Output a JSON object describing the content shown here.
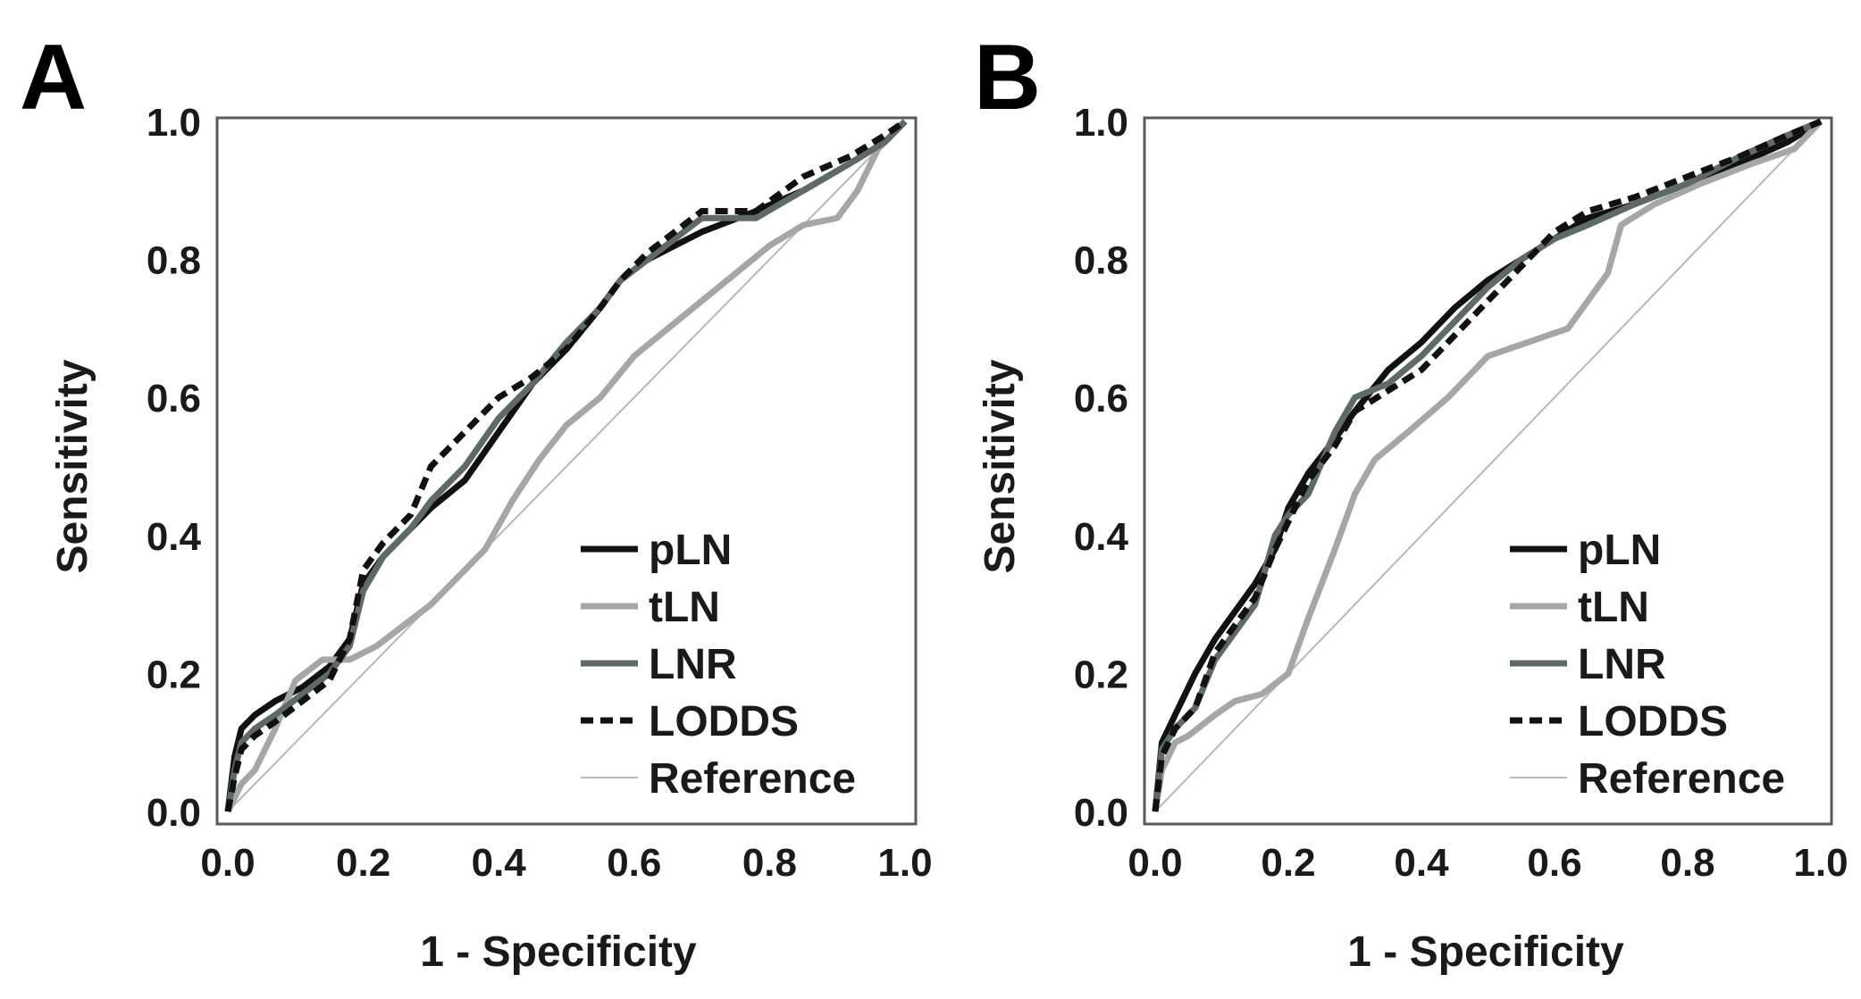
{
  "chart_data": [
    {
      "panel": "A",
      "type": "line",
      "title": "",
      "xlabel": "1 - Specificity",
      "ylabel": "Sensitivity",
      "xlim": [
        0,
        1
      ],
      "ylim": [
        0,
        1
      ],
      "xticks": [
        "0.0",
        "0.2",
        "0.4",
        "0.6",
        "0.8",
        "1.0"
      ],
      "yticks": [
        "0.0",
        "0.2",
        "0.4",
        "0.6",
        "0.8",
        "1.0"
      ],
      "legend_position": "bottom-right",
      "series": [
        {
          "name": "pLN",
          "color": "#111111",
          "style": "solid-thick",
          "x": [
            0,
            0.01,
            0.02,
            0.04,
            0.07,
            0.11,
            0.15,
            0.18,
            0.2,
            0.23,
            0.27,
            0.3,
            0.35,
            0.4,
            0.45,
            0.5,
            0.55,
            0.58,
            0.62,
            0.7,
            0.78,
            0.85,
            0.92,
            0.97,
            1.0
          ],
          "y": [
            0,
            0.08,
            0.12,
            0.14,
            0.16,
            0.18,
            0.21,
            0.25,
            0.33,
            0.37,
            0.41,
            0.44,
            0.48,
            0.55,
            0.62,
            0.67,
            0.73,
            0.77,
            0.8,
            0.84,
            0.87,
            0.9,
            0.94,
            0.97,
            1.0
          ]
        },
        {
          "name": "tLN",
          "color": "#a6a6a6",
          "style": "solid-thick",
          "x": [
            0,
            0.02,
            0.04,
            0.07,
            0.1,
            0.14,
            0.18,
            0.22,
            0.26,
            0.3,
            0.35,
            0.38,
            0.42,
            0.46,
            0.5,
            0.55,
            0.6,
            0.65,
            0.7,
            0.75,
            0.8,
            0.85,
            0.9,
            0.93,
            0.96,
            1.0
          ],
          "y": [
            0,
            0.04,
            0.06,
            0.12,
            0.19,
            0.22,
            0.22,
            0.24,
            0.27,
            0.3,
            0.35,
            0.38,
            0.45,
            0.51,
            0.56,
            0.6,
            0.66,
            0.7,
            0.74,
            0.78,
            0.82,
            0.85,
            0.86,
            0.9,
            0.96,
            1.0
          ]
        },
        {
          "name": "LNR",
          "color": "#5e6b65",
          "style": "solid-thick",
          "x": [
            0,
            0.01,
            0.02,
            0.04,
            0.07,
            0.11,
            0.15,
            0.18,
            0.2,
            0.23,
            0.27,
            0.3,
            0.35,
            0.4,
            0.45,
            0.5,
            0.55,
            0.58,
            0.62,
            0.7,
            0.78,
            0.85,
            0.92,
            0.97,
            1.0
          ],
          "y": [
            0,
            0.06,
            0.1,
            0.12,
            0.14,
            0.17,
            0.2,
            0.24,
            0.32,
            0.37,
            0.41,
            0.45,
            0.5,
            0.57,
            0.62,
            0.68,
            0.73,
            0.77,
            0.8,
            0.86,
            0.86,
            0.9,
            0.94,
            0.97,
            1.0
          ]
        },
        {
          "name": "LODDS",
          "color": "#111111",
          "style": "dashed-thick",
          "x": [
            0,
            0.01,
            0.02,
            0.04,
            0.07,
            0.11,
            0.15,
            0.18,
            0.2,
            0.23,
            0.27,
            0.3,
            0.35,
            0.4,
            0.45,
            0.5,
            0.55,
            0.58,
            0.62,
            0.7,
            0.78,
            0.85,
            0.92,
            0.97,
            1.0
          ],
          "y": [
            0,
            0.05,
            0.09,
            0.11,
            0.13,
            0.16,
            0.19,
            0.25,
            0.35,
            0.39,
            0.43,
            0.5,
            0.55,
            0.6,
            0.63,
            0.67,
            0.73,
            0.77,
            0.81,
            0.87,
            0.87,
            0.92,
            0.95,
            0.98,
            1.0
          ]
        },
        {
          "name": "Reference",
          "color": "#b8b8b8",
          "style": "solid-thin",
          "x": [
            0,
            1
          ],
          "y": [
            0,
            1
          ]
        }
      ]
    },
    {
      "panel": "B",
      "type": "line",
      "title": "",
      "xlabel": "1 - Specificity",
      "ylabel": "Sensitivity",
      "xlim": [
        0,
        1
      ],
      "ylim": [
        0,
        1
      ],
      "xticks": [
        "0.0",
        "0.2",
        "0.4",
        "0.6",
        "0.8",
        "1.0"
      ],
      "yticks": [
        "0.0",
        "0.2",
        "0.4",
        "0.6",
        "0.8",
        "1.0"
      ],
      "legend_position": "bottom-right",
      "series": [
        {
          "name": "pLN",
          "color": "#111111",
          "style": "solid-thick",
          "x": [
            0,
            0.01,
            0.03,
            0.06,
            0.09,
            0.12,
            0.15,
            0.18,
            0.2,
            0.23,
            0.27,
            0.3,
            0.35,
            0.4,
            0.45,
            0.5,
            0.55,
            0.6,
            0.65,
            0.72,
            0.8,
            0.88,
            0.95,
            1.0
          ],
          "y": [
            0,
            0.1,
            0.14,
            0.2,
            0.25,
            0.29,
            0.33,
            0.38,
            0.44,
            0.49,
            0.54,
            0.58,
            0.64,
            0.68,
            0.73,
            0.77,
            0.8,
            0.83,
            0.86,
            0.88,
            0.91,
            0.94,
            0.97,
            1.0
          ]
        },
        {
          "name": "tLN",
          "color": "#a6a6a6",
          "style": "solid-thick",
          "x": [
            0,
            0.01,
            0.03,
            0.05,
            0.09,
            0.12,
            0.16,
            0.2,
            0.23,
            0.25,
            0.27,
            0.3,
            0.33,
            0.38,
            0.44,
            0.5,
            0.56,
            0.62,
            0.65,
            0.68,
            0.7,
            0.75,
            0.82,
            0.9,
            0.96,
            1.0
          ],
          "y": [
            0,
            0.06,
            0.1,
            0.11,
            0.14,
            0.16,
            0.17,
            0.2,
            0.28,
            0.33,
            0.38,
            0.46,
            0.51,
            0.55,
            0.6,
            0.66,
            0.68,
            0.7,
            0.74,
            0.78,
            0.85,
            0.88,
            0.91,
            0.94,
            0.96,
            1.0
          ]
        },
        {
          "name": "LNR",
          "color": "#5e6b65",
          "style": "solid-thick",
          "x": [
            0,
            0.01,
            0.03,
            0.06,
            0.09,
            0.12,
            0.15,
            0.18,
            0.2,
            0.23,
            0.27,
            0.3,
            0.35,
            0.4,
            0.45,
            0.5,
            0.55,
            0.6,
            0.65,
            0.72,
            0.8,
            0.88,
            0.95,
            1.0
          ],
          "y": [
            0,
            0.09,
            0.12,
            0.15,
            0.22,
            0.26,
            0.3,
            0.4,
            0.43,
            0.46,
            0.55,
            0.6,
            0.62,
            0.66,
            0.71,
            0.76,
            0.8,
            0.83,
            0.85,
            0.88,
            0.91,
            0.95,
            0.98,
            1.0
          ]
        },
        {
          "name": "LODDS",
          "color": "#111111",
          "style": "dashed-thick",
          "x": [
            0,
            0.01,
            0.03,
            0.06,
            0.09,
            0.12,
            0.15,
            0.18,
            0.2,
            0.23,
            0.27,
            0.3,
            0.35,
            0.4,
            0.45,
            0.5,
            0.55,
            0.6,
            0.65,
            0.72,
            0.8,
            0.88,
            0.95,
            1.0
          ],
          "y": [
            0,
            0.08,
            0.12,
            0.15,
            0.23,
            0.27,
            0.31,
            0.38,
            0.42,
            0.48,
            0.53,
            0.58,
            0.61,
            0.64,
            0.69,
            0.74,
            0.79,
            0.84,
            0.87,
            0.89,
            0.92,
            0.95,
            0.98,
            1.0
          ]
        },
        {
          "name": "Reference",
          "color": "#b8b8b8",
          "style": "solid-thin",
          "x": [
            0,
            1
          ],
          "y": [
            0,
            1
          ]
        }
      ]
    }
  ]
}
